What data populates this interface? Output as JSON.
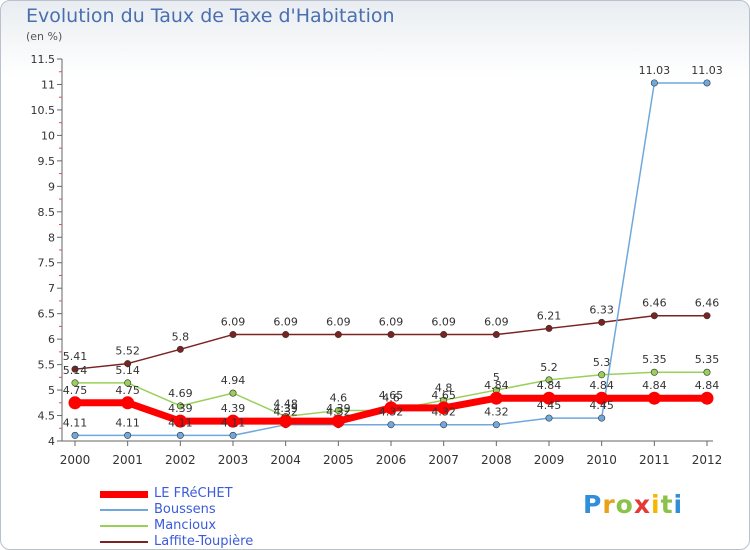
{
  "header": {
    "title": "Evolution du Taux de Taxe d'Habitation",
    "unit": "(en %)"
  },
  "logo": {
    "letters": [
      "P",
      "r",
      "o",
      "x",
      "i",
      "t",
      "i"
    ],
    "colors": [
      "#2f8fd8",
      "#e8a11a",
      "#8bc34a",
      "#e53935",
      "#f5b800",
      "#8bc34a",
      "#2f8fd8"
    ]
  },
  "chart_data": {
    "type": "line",
    "x": [
      2000,
      2001,
      2002,
      2003,
      2004,
      2005,
      2006,
      2007,
      2008,
      2009,
      2010,
      2011,
      2012
    ],
    "ylim": [
      4,
      11.5
    ],
    "yticks": [
      "4",
      "4.5",
      "5",
      "5.5",
      "6",
      "6.5",
      "7",
      "7.5",
      "8",
      "8.5",
      "9",
      "9.5",
      "10",
      "10.5",
      "11",
      "11.5"
    ],
    "grid": false,
    "legend_position": "bottom-left",
    "series": [
      {
        "name": "LE FRéCHET",
        "color": "#ff0000",
        "values": [
          4.75,
          4.75,
          4.39,
          4.39,
          4.39,
          4.39,
          4.65,
          4.65,
          4.84,
          4.84,
          4.84,
          4.84,
          4.84
        ],
        "labels": [
          "",
          "",
          "",
          "",
          "",
          "",
          "",
          "",
          "",
          "",
          "",
          "",
          ""
        ]
      },
      {
        "name": "Boussens",
        "color": "#6fa8dc",
        "values": [
          4.11,
          4.11,
          4.11,
          4.11,
          4.32,
          4.32,
          4.32,
          4.32,
          4.32,
          4.45,
          4.45,
          11.03,
          11.03
        ],
        "labels": [
          "4.11",
          "4.11",
          "4.11",
          "4.11",
          "4.32",
          "4.32",
          "4.32",
          "4.32",
          "4.32",
          "4.45",
          "4.45",
          "11.03",
          "11.03"
        ]
      },
      {
        "name": "Mancioux",
        "color": "#9ad05a",
        "values": [
          5.14,
          5.14,
          4.69,
          4.94,
          4.48,
          4.6,
          4.6,
          4.8,
          5.0,
          5.2,
          5.3,
          5.35,
          5.35
        ],
        "labels": [
          "5.14",
          "5.14",
          "4.69",
          "4.94",
          "4.48",
          "4.6",
          "4.6",
          "4.8",
          "5",
          "5.2",
          "5.3",
          "5.35",
          "5.35"
        ]
      },
      {
        "name": "Laffite-Toupière",
        "color": "#7b2222",
        "values": [
          5.41,
          5.52,
          5.8,
          6.09,
          6.09,
          6.09,
          6.09,
          6.09,
          6.09,
          6.21,
          6.33,
          6.46,
          6.46
        ],
        "labels": [
          "5.41",
          "5.52",
          "5.8",
          "6.09",
          "6.09",
          "6.09",
          "6.09",
          "6.09",
          "6.09",
          "6.21",
          "6.33",
          "6.46",
          "6.46"
        ]
      }
    ],
    "series_point_labels_red": [
      "4.75",
      "4.75",
      "4.39",
      "4.39",
      "4.39",
      "4.39",
      "4.65",
      "4.65",
      "4.84",
      "4.84",
      "4.84",
      "4.84",
      "4.84"
    ]
  }
}
